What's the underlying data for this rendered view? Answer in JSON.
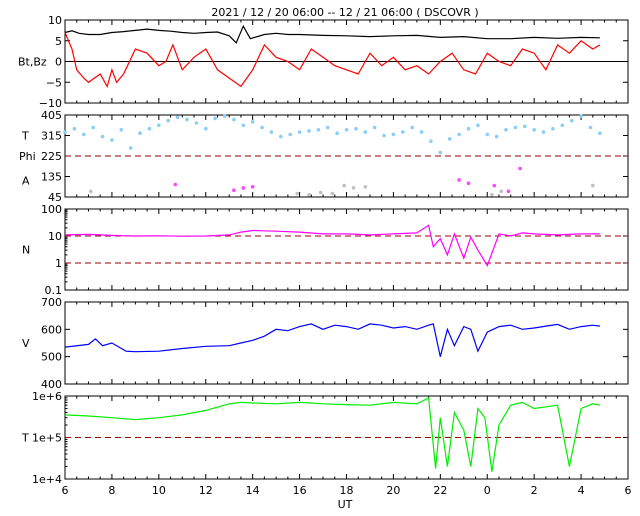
{
  "title": "2021 / 12 / 20   06:00 -- 12 / 21   06:00 ( DSCOVR )",
  "colors": {
    "bt": "#000000",
    "bz": "#ff0000",
    "theta": "#87cefa",
    "phi": "#c0c0c0",
    "phi_markers": "#ff44ff",
    "density": "#ff00ff",
    "speed": "#0000ff",
    "temperature": "#00ee00",
    "reference_line": "#990000"
  },
  "x_axis": {
    "label": "UT",
    "ticks": [
      "6",
      "8",
      "10",
      "12",
      "14",
      "16",
      "18",
      "20",
      "22",
      "0",
      "2",
      "4",
      "6"
    ],
    "range_hours": [
      0,
      24
    ],
    "data_end_hours": 22.8
  },
  "chart_data": [
    {
      "type": "line",
      "panel": "magnetic-field",
      "ylabel": "Bt,Bz",
      "ylim": [
        -10,
        10
      ],
      "yticks": [
        "10",
        "5",
        "0",
        "−5",
        "−10"
      ],
      "ytick_values": [
        10,
        5,
        0,
        -5,
        -10
      ],
      "reference_lines": [
        0
      ],
      "series": [
        {
          "key": "Bt",
          "color_key": "bt",
          "x": [
            0,
            0.3,
            0.6,
            1,
            1.5,
            2,
            2.5,
            3,
            3.5,
            4,
            4.5,
            5,
            5.5,
            6,
            6.5,
            7,
            7.3,
            7.6,
            7.9,
            8.5,
            9,
            9.5,
            10,
            11,
            12,
            13,
            14,
            15,
            16,
            17,
            18,
            19,
            20,
            21,
            22,
            22.8
          ],
          "y": [
            7,
            7.4,
            6.8,
            6.5,
            6.5,
            7,
            7.2,
            7.5,
            7.8,
            7.5,
            7.3,
            7,
            6.8,
            7,
            7.1,
            6.2,
            4.5,
            8.5,
            5.5,
            6.5,
            6.8,
            6.5,
            6.5,
            6.3,
            6.2,
            6,
            6.2,
            6.3,
            5.8,
            6,
            5.5,
            5.5,
            5.8,
            5.6,
            5.8,
            5.7
          ]
        },
        {
          "key": "Bz",
          "color_key": "bz",
          "x": [
            0,
            0.3,
            0.5,
            0.8,
            1,
            1.5,
            1.8,
            2,
            2.2,
            2.5,
            3,
            3.5,
            4,
            4.3,
            4.6,
            5,
            5.5,
            6,
            6.5,
            7,
            7.5,
            8,
            8.5,
            9,
            9.5,
            10,
            10.5,
            11,
            11.5,
            12,
            12.5,
            13,
            13.5,
            14,
            14.5,
            15,
            15.5,
            16,
            16.5,
            17,
            17.5,
            18,
            18.5,
            19,
            19.5,
            20,
            20.5,
            21,
            21.5,
            22,
            22.5,
            22.8
          ],
          "y": [
            7,
            3,
            -2,
            -4,
            -5,
            -3,
            -6,
            -2,
            -5,
            -3,
            3,
            2,
            -1,
            0,
            4,
            -2,
            1,
            3,
            -2,
            -4,
            -6,
            -2,
            4,
            1,
            0,
            -2,
            3,
            1,
            -1,
            -2,
            -3,
            2,
            -1,
            1,
            -2,
            -1,
            -3,
            0,
            2,
            -2,
            -3,
            2,
            0,
            -1,
            3,
            2,
            -2,
            4,
            2,
            5,
            3,
            4
          ]
        }
      ]
    },
    {
      "type": "scatter",
      "panel": "angles",
      "ylabel_top": "T",
      "ylabel_mid": "Phi",
      "ylabel_bottom": "A",
      "ylim": [
        45,
        405
      ],
      "yticks": [
        "405",
        "315",
        "225",
        "135",
        "45"
      ],
      "ytick_values": [
        405,
        315,
        225,
        135,
        45
      ],
      "reference_lines": [
        225
      ],
      "series": [
        {
          "key": "theta",
          "color_key": "theta",
          "x": [
            0,
            0.4,
            0.8,
            1.2,
            1.6,
            2,
            2.4,
            2.8,
            3.2,
            3.6,
            4,
            4.4,
            4.8,
            5.2,
            5.6,
            6,
            6.4,
            6.8,
            7.2,
            7.6,
            8,
            8.4,
            8.8,
            9.2,
            9.6,
            10,
            10.4,
            10.8,
            11.2,
            11.6,
            12,
            12.4,
            12.8,
            13.2,
            13.6,
            14,
            14.4,
            14.8,
            15.2,
            15.6,
            16,
            16.4,
            16.8,
            17.2,
            17.6,
            18,
            18.4,
            18.8,
            19.2,
            19.6,
            20,
            20.4,
            20.8,
            21.2,
            21.6,
            22,
            22.4,
            22.8
          ],
          "y": [
            330,
            345,
            320,
            350,
            310,
            295,
            340,
            260,
            325,
            345,
            360,
            380,
            395,
            385,
            370,
            345,
            390,
            400,
            385,
            360,
            375,
            350,
            330,
            310,
            320,
            330,
            335,
            340,
            350,
            325,
            340,
            345,
            330,
            350,
            315,
            320,
            330,
            350,
            330,
            290,
            240,
            300,
            320,
            345,
            360,
            320,
            310,
            340,
            350,
            355,
            340,
            330,
            345,
            360,
            380,
            400,
            350,
            325
          ]
        },
        {
          "key": "phi",
          "color_key": "phi",
          "x": [
            1.1,
            9.9,
            10.4,
            10.9,
            11.4,
            11.9,
            12.3,
            12.8,
            18.2,
            18.6,
            22.5
          ],
          "y": [
            70,
            60,
            55,
            65,
            60,
            95,
            85,
            90,
            55,
            70,
            95
          ]
        },
        {
          "key": "phi_markers",
          "color_key": "phi_markers",
          "x": [
            4.7,
            7.2,
            7.6,
            8.0,
            16.8,
            17.2,
            18.3,
            18.9,
            19.4
          ],
          "y": [
            100,
            75,
            85,
            90,
            120,
            105,
            95,
            70,
            170
          ]
        }
      ]
    },
    {
      "type": "line",
      "panel": "density",
      "ylabel": "N",
      "scale": "log",
      "ylim": [
        0.1,
        100
      ],
      "yticks": [
        "100",
        "10",
        "1",
        "0.1"
      ],
      "ytick_values": [
        100,
        10,
        1,
        0.1
      ],
      "reference_lines": [
        10,
        1
      ],
      "series": [
        {
          "key": "N",
          "color_key": "density",
          "x": [
            0,
            1,
            2,
            3,
            4,
            5,
            6,
            7,
            7.5,
            8,
            9,
            10,
            11,
            12,
            13,
            14,
            15,
            15.5,
            15.7,
            16,
            16.3,
            16.6,
            17,
            17.3,
            17.6,
            18,
            18.5,
            19,
            19.5,
            20,
            21,
            22,
            22.8
          ],
          "y": [
            11,
            11.5,
            10.5,
            10,
            10.2,
            9.8,
            10,
            11,
            14,
            16,
            15,
            14,
            12,
            12,
            11,
            12,
            13,
            25,
            4,
            8,
            2,
            12,
            1.5,
            9,
            3,
            0.8,
            12,
            10,
            13,
            12,
            11,
            12,
            12
          ]
        }
      ]
    },
    {
      "type": "line",
      "panel": "speed",
      "ylabel": "V",
      "ylim": [
        400,
        700
      ],
      "yticks": [
        "700",
        "600",
        "500",
        "400"
      ],
      "ytick_values": [
        700,
        600,
        500,
        400
      ],
      "series": [
        {
          "key": "V",
          "color_key": "speed",
          "x": [
            0,
            1,
            1.3,
            1.6,
            2,
            2.3,
            2.6,
            3,
            4,
            5,
            6,
            7,
            7.5,
            8,
            8.5,
            9,
            9.5,
            10,
            10.5,
            11,
            11.5,
            12,
            12.5,
            13,
            13.5,
            14,
            14.5,
            15,
            15.5,
            15.7,
            16,
            16.3,
            16.6,
            17,
            17.3,
            17.6,
            18,
            18.5,
            19,
            19.5,
            20,
            20.5,
            21,
            21.5,
            22,
            22.5,
            22.8
          ],
          "y": [
            535,
            545,
            565,
            540,
            550,
            535,
            520,
            518,
            520,
            530,
            538,
            540,
            550,
            560,
            575,
            600,
            595,
            610,
            620,
            600,
            615,
            610,
            600,
            620,
            615,
            605,
            610,
            600,
            615,
            620,
            500,
            600,
            540,
            610,
            600,
            520,
            590,
            610,
            615,
            600,
            605,
            612,
            618,
            600,
            610,
            615,
            612
          ]
        }
      ]
    },
    {
      "type": "line",
      "panel": "temperature",
      "ylabel": "T",
      "scale": "log",
      "ylim": [
        10000,
        1000000
      ],
      "yticks": [
        "1e+6",
        "1e+5",
        "1e+4"
      ],
      "ytick_values": [
        1000000,
        100000,
        10000
      ],
      "reference_lines": [
        100000
      ],
      "series": [
        {
          "key": "T",
          "color_key": "temperature",
          "x": [
            0,
            1,
            2,
            3,
            4,
            5,
            6,
            7,
            7.5,
            8,
            9,
            10,
            11,
            12,
            13,
            14,
            15,
            15.5,
            15.8,
            16,
            16.3,
            16.6,
            17,
            17.3,
            17.6,
            17.9,
            18.2,
            18.5,
            19,
            19.5,
            20,
            21,
            21.5,
            22,
            22.5,
            22.8
          ],
          "y": [
            350000,
            330000,
            300000,
            270000,
            300000,
            350000,
            450000,
            650000,
            700000,
            680000,
            650000,
            700000,
            650000,
            620000,
            600000,
            700000,
            650000,
            900000,
            18000,
            300000,
            20000,
            400000,
            150000,
            20000,
            500000,
            300000,
            15000,
            200000,
            600000,
            700000,
            500000,
            600000,
            20000,
            500000,
            650000,
            600000
          ]
        }
      ]
    }
  ]
}
